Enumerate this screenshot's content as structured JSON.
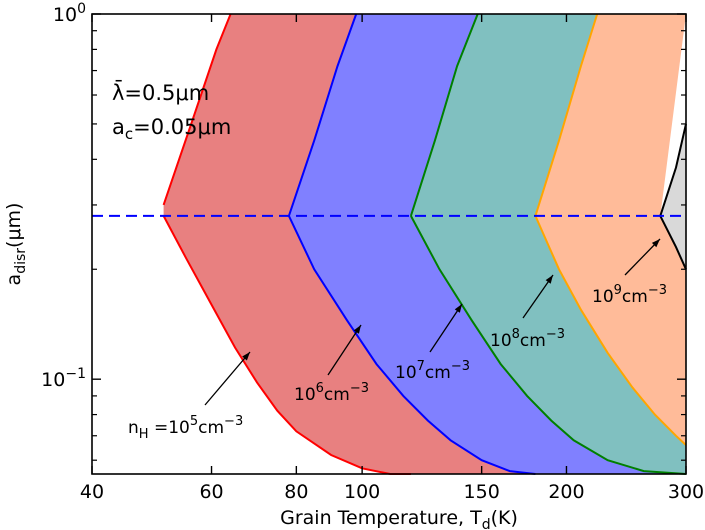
{
  "chart_data": {
    "type": "area",
    "title": "",
    "xlabel": "Grain Temperature, T",
    "xlabel_sub": "d",
    "xlabel_unit": "(K)",
    "ylabel": "a",
    "ylabel_sub": "disr",
    "ylabel_unit": "(μm)",
    "xscale": "log",
    "yscale": "log",
    "xlim": [
      40,
      300
    ],
    "ylim": [
      0.055,
      1.0
    ],
    "x_ticks": [
      40,
      60,
      80,
      100,
      150,
      200,
      300
    ],
    "x_tick_labels": [
      "40",
      "60",
      "80",
      "100",
      "150",
      "200",
      "300"
    ],
    "y_ticks": [
      0.1,
      1.0
    ],
    "y_tick_labels": [
      {
        "base": "10",
        "exp": "−1"
      },
      {
        "base": "10",
        "exp": "0"
      }
    ],
    "grid": false,
    "dashed_line": {
      "y": 0.28,
      "color": "#0000ff"
    },
    "text_annotations": {
      "lambda": "λ̄=0.5μm",
      "ac_base": "a",
      "ac_sub": "c",
      "ac_rest": "=0.05μm"
    },
    "series": [
      {
        "label_parts": {
          "pre": "n",
          "sub": "H",
          "mid": " =10",
          "sup": "5",
          "post": "cm",
          "sup2": "−3"
        },
        "fill": "#e88080",
        "edge": "#ff0000",
        "x_lower": [
          51,
          55,
          60,
          65,
          70,
          75,
          80,
          90,
          100,
          110,
          118
        ],
        "y_lower": [
          0.28,
          0.215,
          0.16,
          0.122,
          0.098,
          0.082,
          0.072,
          0.062,
          0.057,
          0.055,
          0.055
        ],
        "x_upper": [
          51,
          56,
          61,
          64
        ],
        "y_upper": [
          0.3,
          0.5,
          0.8,
          1.0
        ],
        "x_top_right": 98,
        "vertex_x": 78,
        "vertex_y": 0.28
      },
      {
        "label_parts": {
          "pre": "",
          "sub": "",
          "mid": "10",
          "sup": "6",
          "post": "cm",
          "sup2": "−3"
        },
        "fill": "#8080ff",
        "edge": "#0000ff",
        "x_lower": [
          78,
          85,
          95,
          105,
          115,
          125,
          135,
          150,
          165,
          180
        ],
        "y_lower": [
          0.28,
          0.2,
          0.145,
          0.11,
          0.09,
          0.077,
          0.068,
          0.06,
          0.056,
          0.055
        ],
        "x_upper": [
          78,
          85,
          92,
          98
        ],
        "y_upper": [
          0.28,
          0.45,
          0.72,
          1.0
        ],
        "x_top_right": 148,
        "vertex_x": 118,
        "vertex_y": 0.28
      },
      {
        "label_parts": {
          "pre": "",
          "sub": "",
          "mid": "10",
          "sup": "7",
          "post": "cm",
          "sup2": "−3"
        },
        "fill": "#80c0c0",
        "edge": "#008000",
        "x_lower": [
          118,
          130,
          145,
          160,
          175,
          190,
          205,
          230,
          260,
          300
        ],
        "y_lower": [
          0.28,
          0.2,
          0.145,
          0.11,
          0.09,
          0.077,
          0.068,
          0.06,
          0.056,
          0.055
        ],
        "x_upper": [
          118,
          128,
          138,
          148
        ],
        "y_upper": [
          0.28,
          0.45,
          0.72,
          1.0
        ],
        "x_top_right": 222,
        "vertex_x": 180,
        "vertex_y": 0.28
      },
      {
        "label_parts": {
          "pre": "",
          "sub": "",
          "mid": "10",
          "sup": "8",
          "post": "cm",
          "sup2": "−3"
        },
        "fill": "#ffbb99",
        "edge": "#ffa500",
        "x_lower": [
          180,
          195,
          210,
          230,
          250,
          270,
          290,
          300
        ],
        "y_lower": [
          0.28,
          0.2,
          0.155,
          0.118,
          0.095,
          0.08,
          0.07,
          0.066
        ],
        "x_upper": [
          180,
          195,
          210,
          222
        ],
        "y_upper": [
          0.28,
          0.45,
          0.72,
          1.0
        ],
        "x_top_right": 300,
        "vertex_x": 275,
        "vertex_y": 0.28
      },
      {
        "label_parts": {
          "pre": "",
          "sub": "",
          "mid": "10",
          "sup": "9",
          "post": "cm",
          "sup2": "−3"
        },
        "fill": "#d9d9d9",
        "edge": "#000000",
        "x_lower": [
          275,
          290,
          300
        ],
        "y_lower": [
          0.28,
          0.23,
          0.2
        ],
        "x_upper": [
          275,
          290,
          300
        ],
        "y_upper": [
          0.28,
          0.38,
          0.5
        ],
        "x_top_right": 300,
        "vertex_x": 300,
        "vertex_y": 0.28
      }
    ]
  }
}
